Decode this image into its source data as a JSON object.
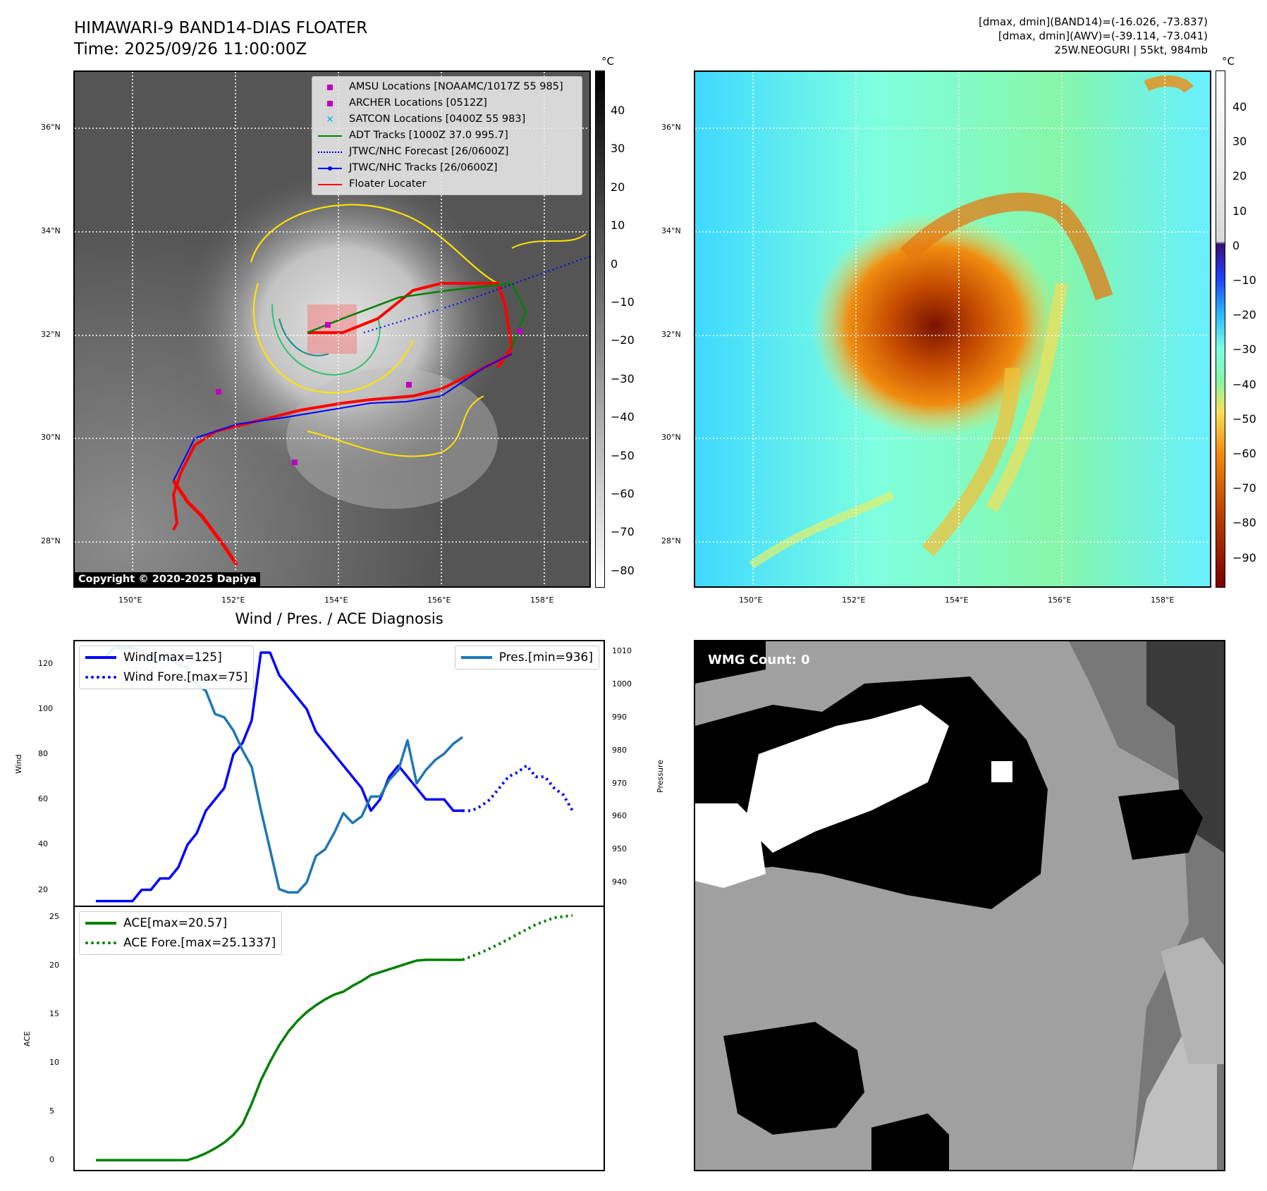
{
  "header": {
    "title_line1": "HIMAWARI-9 BAND14-DIAS FLOATER",
    "title_line2": "Time: 2025/09/26 11:00:00Z",
    "info_line1": "[dmax, dmin](BAND14)=(-16.026, -73.837)",
    "info_line2": "[dmax, dmin](AWV)=(-39.114, -73.041)",
    "info_line3": "25W.NEOGURI | 55kt, 984mb"
  },
  "map": {
    "lat_ticks": [
      "36°N",
      "34°N",
      "32°N",
      "30°N",
      "28°N"
    ],
    "lon_ticks": [
      "150°E",
      "152°E",
      "154°E",
      "156°E",
      "158°E"
    ],
    "unit": "°C",
    "colorbar_ticks_left": [
      "40",
      "30",
      "20",
      "10",
      "0",
      "−10",
      "−20",
      "−30",
      "−40",
      "−50",
      "−60",
      "−70",
      "−80"
    ],
    "colorbar_ticks_right": [
      "40",
      "30",
      "20",
      "10",
      "0",
      "−10",
      "−20",
      "−30",
      "−40",
      "−50",
      "−60",
      "−70",
      "−80",
      "−90"
    ],
    "copyright": "Copyright © 2020-2025 Dapiya",
    "legend": [
      {
        "label": "AMSU Locations [NOAAMC/1017Z 55 985]",
        "color": "#bf00bf",
        "kind": "square"
      },
      {
        "label": "ARCHER Locations [0512Z]",
        "color": "#bf00bf",
        "kind": "square"
      },
      {
        "label": "SATCON Locations [0400Z 55 983]",
        "color": "#17becf",
        "kind": "x"
      },
      {
        "label": "ADT Tracks [1000Z 37.0 995.7]",
        "color": "#008000",
        "kind": "line"
      },
      {
        "label": "JTWC/NHC Forecast [26/0600Z]",
        "color": "#0000ff",
        "kind": "dotted"
      },
      {
        "label": "JTWC/NHC Tracks [26/0600Z]",
        "color": "#0000ff",
        "kind": "dotline"
      },
      {
        "label": "Floater Locater",
        "color": "#ff0000",
        "kind": "line"
      }
    ]
  },
  "diagnosis": {
    "title": "Wind / Pres. / ACE Diagnosis",
    "wmg_label": "WMG Count: 0",
    "wind_legend": [
      "Wind[max=125]",
      "Wind Fore.[max=75]"
    ],
    "pres_legend": [
      "Pres.[min=936]"
    ],
    "ace_legend": [
      "ACE[max=20.57]",
      "ACE Fore.[max=25.1337]"
    ]
  },
  "chart_data": [
    {
      "type": "line",
      "title": "Wind / Pres. / ACE Diagnosis",
      "ylabel": "Wind",
      "y2label": "Pressure",
      "ylim": [
        13,
        130
      ],
      "y2lim": [
        933,
        1013
      ],
      "yticks": [
        20,
        40,
        60,
        80,
        100,
        120
      ],
      "y2ticks": [
        940,
        950,
        960,
        970,
        980,
        990,
        1000,
        1010
      ],
      "series": [
        {
          "name": "Wind[max=125]",
          "axis": "left",
          "color": "#0000ff",
          "style": "solid",
          "x": [
            0,
            1,
            2,
            3,
            4,
            5,
            6,
            7,
            8,
            9,
            10,
            11,
            12,
            13,
            14,
            15,
            16,
            17,
            18,
            19,
            20,
            21,
            22,
            23,
            24,
            25,
            26,
            27,
            28,
            29,
            30,
            31,
            32,
            33,
            34,
            35,
            36,
            37,
            38,
            39,
            40
          ],
          "y": [
            15,
            15,
            15,
            15,
            15,
            20,
            20,
            25,
            25,
            30,
            40,
            45,
            55,
            60,
            65,
            80,
            85,
            95,
            125,
            125,
            115,
            110,
            105,
            100,
            90,
            85,
            80,
            75,
            70,
            65,
            55,
            60,
            70,
            75,
            70,
            65,
            60,
            60,
            60,
            55,
            55
          ]
        },
        {
          "name": "Wind Fore.[max=75]",
          "axis": "left",
          "color": "#0000ff",
          "style": "dotted",
          "x": [
            40,
            41,
            42,
            43,
            44,
            45,
            46,
            47,
            48,
            49,
            50,
            51,
            52
          ],
          "y": [
            55,
            55,
            57,
            60,
            65,
            70,
            72,
            75,
            70,
            70,
            65,
            62,
            55
          ]
        },
        {
          "name": "Pres.[min=936]",
          "axis": "right",
          "color": "#1f77b4",
          "style": "solid",
          "x": [
            0,
            1,
            2,
            3,
            4,
            5,
            6,
            7,
            8,
            9,
            10,
            11,
            12,
            13,
            14,
            15,
            16,
            17,
            18,
            19,
            20,
            21,
            22,
            23,
            24,
            25,
            26,
            27,
            28,
            29,
            30,
            31,
            32,
            33,
            34,
            35,
            36,
            37,
            38,
            39,
            40
          ],
          "y": [
            1008,
            1008,
            1011,
            1011,
            1011,
            1010,
            1008,
            1008,
            1008,
            1006,
            1005,
            1000,
            998,
            991,
            990,
            986,
            980,
            975,
            962,
            950,
            938,
            937,
            937,
            940,
            948,
            950,
            955,
            961,
            958,
            960,
            966,
            966,
            971,
            974,
            983,
            970,
            974,
            977,
            979,
            982,
            984
          ]
        }
      ]
    },
    {
      "type": "line",
      "ylabel": "ACE",
      "ylim": [
        -1,
        26
      ],
      "yticks": [
        0,
        5,
        10,
        15,
        20,
        25
      ],
      "series": [
        {
          "name": "ACE[max=20.57]",
          "color": "#008000",
          "style": "solid",
          "x": [
            0,
            2,
            4,
            6,
            8,
            10,
            11,
            12,
            13,
            14,
            15,
            16,
            17,
            18,
            19,
            20,
            21,
            22,
            23,
            24,
            25,
            26,
            27,
            28,
            29,
            30,
            31,
            32,
            33,
            34,
            35,
            36,
            37,
            38,
            39,
            40
          ],
          "y": [
            0,
            0,
            0,
            0,
            0,
            0,
            0.3,
            0.7,
            1.2,
            1.8,
            2.6,
            3.7,
            5.8,
            8.2,
            10.1,
            11.8,
            13.2,
            14.3,
            15.2,
            15.9,
            16.5,
            17,
            17.3,
            17.9,
            18.4,
            19,
            19.3,
            19.6,
            19.9,
            20.2,
            20.5,
            20.57,
            20.57,
            20.57,
            20.57,
            20.57
          ]
        },
        {
          "name": "ACE Fore.[max=25.1337]",
          "color": "#008000",
          "style": "dotted",
          "x": [
            40,
            42,
            44,
            46,
            48,
            50,
            52
          ],
          "y": [
            20.57,
            21.3,
            22.2,
            23.2,
            24.2,
            24.9,
            25.13
          ]
        }
      ]
    }
  ]
}
